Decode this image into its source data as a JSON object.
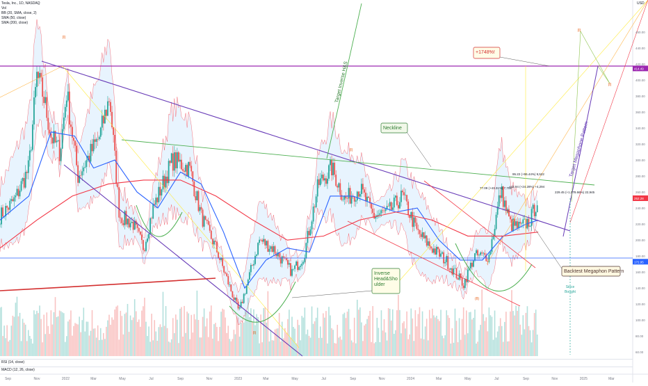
{
  "header": {
    "symbol_line": "Tesla, Inc., 1D, NASDAQ",
    "indicators": [
      "Vol",
      "BB (20, SMA, close, 2)",
      "SMA (50, close)",
      "SMA (200, close)"
    ],
    "currency": "USD",
    "rsi_label": "RSI (14, close)",
    "macd_label": "MACD (12, 26, close)"
  },
  "chart_data": {
    "type": "line",
    "title": "Tesla, Inc., 1D, NASDAQ",
    "xlabel": "",
    "ylabel": "",
    "x_ticks": [
      "Sep",
      "Nov",
      "2022",
      "Mar",
      "May",
      "Jul",
      "Sep",
      "Nov",
      "2023",
      "Mar",
      "May",
      "Jul",
      "Sep",
      "Nov",
      "2024",
      "Mar",
      "May",
      "Jul",
      "Sep",
      "Nov",
      "2025",
      "Mar"
    ],
    "y_ticks": [
      460,
      440,
      420,
      400,
      380,
      360,
      340,
      320,
      300,
      280,
      260,
      240,
      220,
      200,
      180,
      160,
      140,
      120,
      100,
      80,
      60
    ],
    "ylim": [
      55,
      500
    ],
    "grid": false,
    "price_labels": [
      {
        "value": 414.49,
        "text": "414.49",
        "color": "#9c27b0"
      },
      {
        "value": 252.28,
        "text": "252.28",
        "color": "#f23645"
      },
      {
        "value": 172.95,
        "text": "172.95",
        "color": "#2962ff"
      }
    ],
    "series": [
      {
        "name": "Close",
        "color": "#26a69a",
        "x": [
          "2021-08-15",
          "2021-09-15",
          "2021-10-15",
          "2021-11-01",
          "2021-11-15",
          "2021-12-01",
          "2021-12-20",
          "2022-01-03",
          "2022-01-27",
          "2022-02-15",
          "2022-03-14",
          "2022-04-04",
          "2022-04-25",
          "2022-05-24",
          "2022-06-15",
          "2022-07-05",
          "2022-08-15",
          "2022-09-20",
          "2022-10-15",
          "2022-11-15",
          "2022-12-15",
          "2023-01-03",
          "2023-02-15",
          "2023-03-15",
          "2023-04-25",
          "2023-05-20",
          "2023-06-20",
          "2023-07-18",
          "2023-08-15",
          "2023-09-15",
          "2023-10-15",
          "2023-11-15",
          "2023-12-15",
          "2024-01-15",
          "2024-02-15",
          "2024-03-15",
          "2024-04-22",
          "2024-05-15",
          "2024-06-15",
          "2024-07-10",
          "2024-07-30",
          "2024-08-20",
          "2024-09-10",
          "2024-09-27"
        ],
        "values": [
          230,
          250,
          290,
          405,
          380,
          330,
          310,
          385,
          280,
          300,
          330,
          380,
          230,
          220,
          190,
          240,
          300,
          290,
          230,
          190,
          140,
          110,
          200,
          190,
          160,
          180,
          270,
          290,
          250,
          265,
          230,
          235,
          255,
          210,
          190,
          175,
          145,
          180,
          180,
          262,
          220,
          215,
          225,
          252
        ]
      },
      {
        "name": "SMA 50",
        "color": "#2962ff",
        "x": [
          "2021-08-15",
          "2021-10-15",
          "2021-12-01",
          "2022-01-20",
          "2022-03-01",
          "2022-04-15",
          "2022-06-01",
          "2022-07-15",
          "2022-09-01",
          "2022-10-15",
          "2022-12-01",
          "2023-01-15",
          "2023-03-01",
          "2023-04-15",
          "2023-06-01",
          "2023-07-15",
          "2023-09-01",
          "2023-10-15",
          "2023-12-01",
          "2024-01-15",
          "2024-03-01",
          "2024-04-15",
          "2024-06-01",
          "2024-07-15",
          "2024-09-01",
          "2024-09-27"
        ],
        "values": [
          225,
          255,
          335,
          330,
          290,
          300,
          260,
          240,
          285,
          270,
          210,
          140,
          175,
          190,
          185,
          255,
          255,
          245,
          235,
          240,
          200,
          175,
          175,
          205,
          220,
          225
        ]
      },
      {
        "name": "SMA 200",
        "color": "#f23645",
        "x": [
          "2021-08-15",
          "2021-11-01",
          "2022-01-15",
          "2022-04-01",
          "2022-06-15",
          "2022-09-01",
          "2022-11-15",
          "2023-02-01",
          "2023-04-15",
          "2023-07-01",
          "2023-09-15",
          "2023-12-01",
          "2024-02-15",
          "2024-05-01",
          "2024-07-15",
          "2024-09-27"
        ],
        "values": [
          190,
          225,
          255,
          270,
          275,
          275,
          255,
          225,
          200,
          205,
          225,
          235,
          225,
          205,
          205,
          210
        ]
      }
    ],
    "annotations": [
      {
        "text": "Neckline",
        "type": "callout"
      },
      {
        "text": "Inverse Head&Shoulder",
        "type": "callout"
      },
      {
        "text": "+1748%!",
        "type": "callout"
      },
      {
        "text": "Backtest Megaphon Pattern",
        "type": "callout"
      },
      {
        "text": "Target Inverse H&S",
        "type": "label"
      },
      {
        "text": "Target Megaphone Pattern",
        "type": "label"
      },
      {
        "text": "Since Bought",
        "type": "label"
      },
      {
        "text": "77.09 (+43.31%) 7,709",
        "type": "measure"
      },
      {
        "text": "95.22 (+55.44%) 9,522",
        "type": "measure"
      },
      {
        "text": "+42.94 (+24.28%) +4,294",
        "type": "measure"
      },
      {
        "text": "229.45 (+1,078.66%) 22,945",
        "type": "measure"
      }
    ],
    "wave_labels": [
      "(I)",
      "(I)",
      "(I)",
      "(II)",
      "(II)",
      "(I)",
      "(I)"
    ]
  }
}
